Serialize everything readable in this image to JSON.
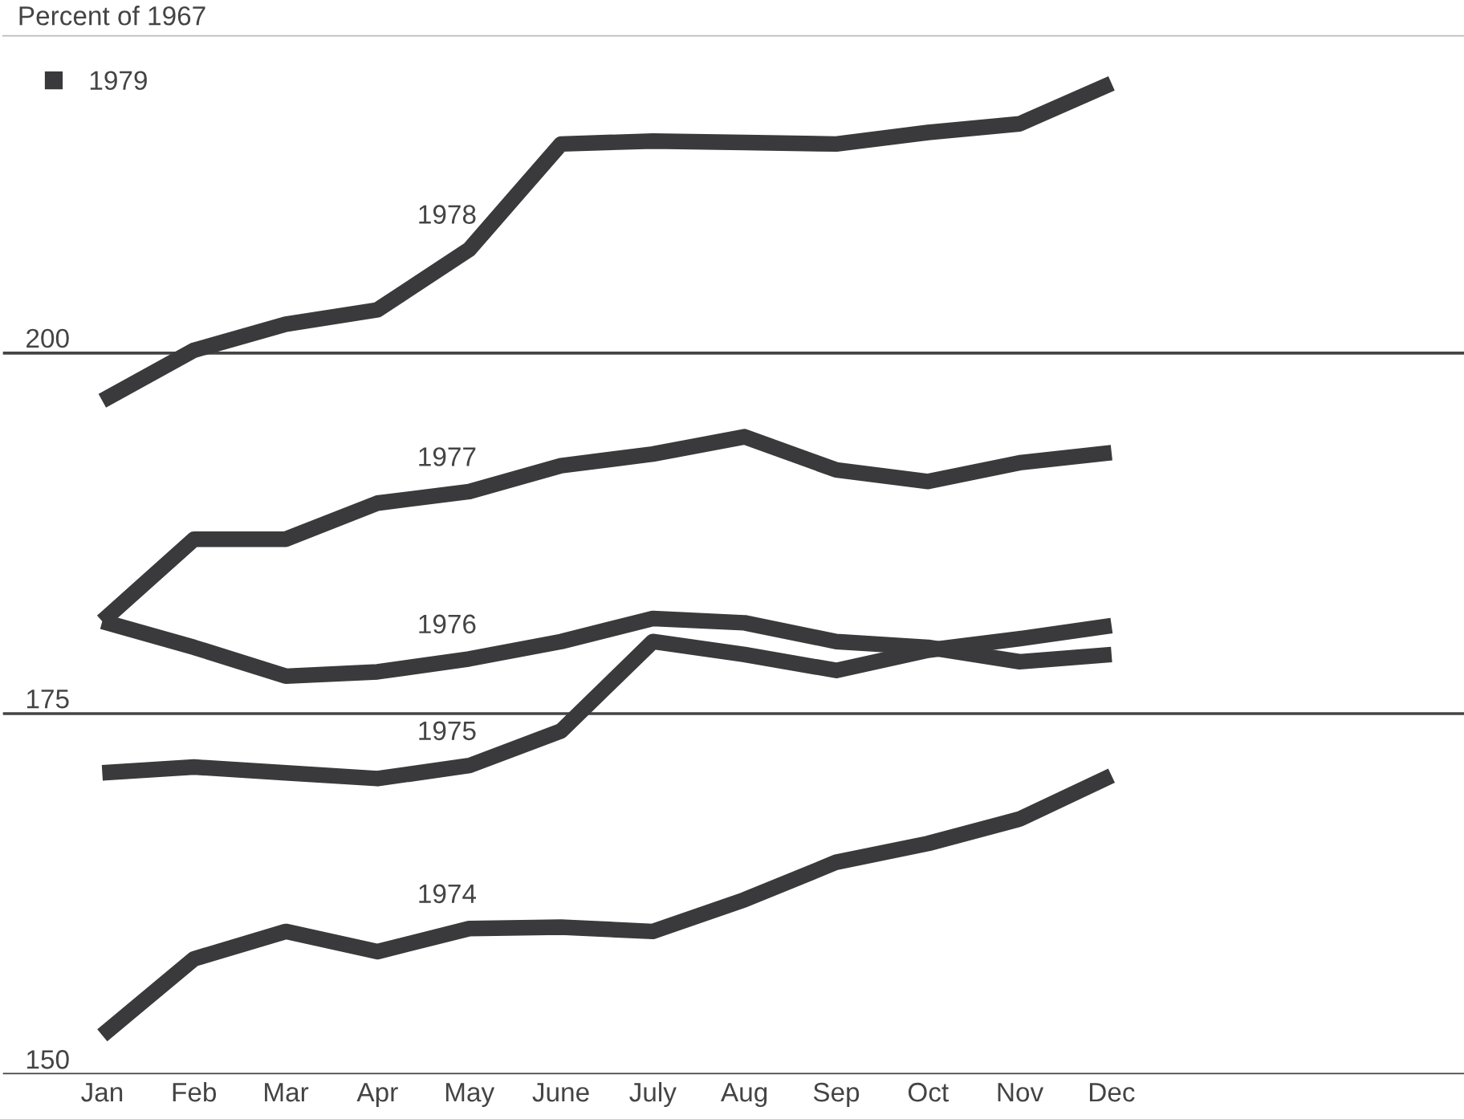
{
  "chart_data": {
    "type": "line",
    "ylabel": "Percent of 1967",
    "categories": [
      "Jan",
      "Feb",
      "Mar",
      "Apr",
      "May",
      "June",
      "July",
      "Aug",
      "Sep",
      "Oct",
      "Nov",
      "Dec"
    ],
    "series": [
      {
        "name": "1978",
        "color": "#3a3a3c",
        "values": [
          196.7,
          200.2,
          202.0,
          203.0,
          207.2,
          214.5,
          214.7,
          214.6,
          214.5,
          215.3,
          215.9,
          218.7
        ]
      },
      {
        "name": "1977",
        "color": "#3a3a3c",
        "values": [
          181.4,
          187.1,
          187.1,
          189.6,
          190.4,
          192.2,
          193.0,
          194.2,
          191.9,
          191.1,
          192.4,
          193.1
        ]
      },
      {
        "name": "1976",
        "color": "#3a3a3c",
        "values": [
          181.4,
          179.6,
          177.6,
          177.9,
          178.8,
          180.0,
          181.6,
          181.3,
          180.0,
          179.6,
          178.6,
          179.1
        ]
      },
      {
        "name": "1975",
        "color": "#3a3a3c",
        "values": [
          170.9,
          171.3,
          170.9,
          170.5,
          171.4,
          173.8,
          180.0,
          179.1,
          178.0,
          179.4,
          180.2,
          181.1
        ]
      },
      {
        "name": "1974",
        "color": "#3a3a3c",
        "values": [
          152.7,
          158.0,
          159.9,
          158.5,
          160.1,
          160.2,
          159.9,
          162.1,
          164.7,
          166.0,
          167.7,
          170.7
        ]
      },
      {
        "name": "1979",
        "color": "#3a3a3c",
        "values": [
          null,
          null,
          null,
          null,
          null,
          null,
          null,
          null,
          null,
          null,
          null,
          null
        ]
      }
    ],
    "ylim": [
      150,
      222
    ],
    "yticks": [
      150,
      175,
      200
    ],
    "grid": "y",
    "legend": "top left"
  }
}
